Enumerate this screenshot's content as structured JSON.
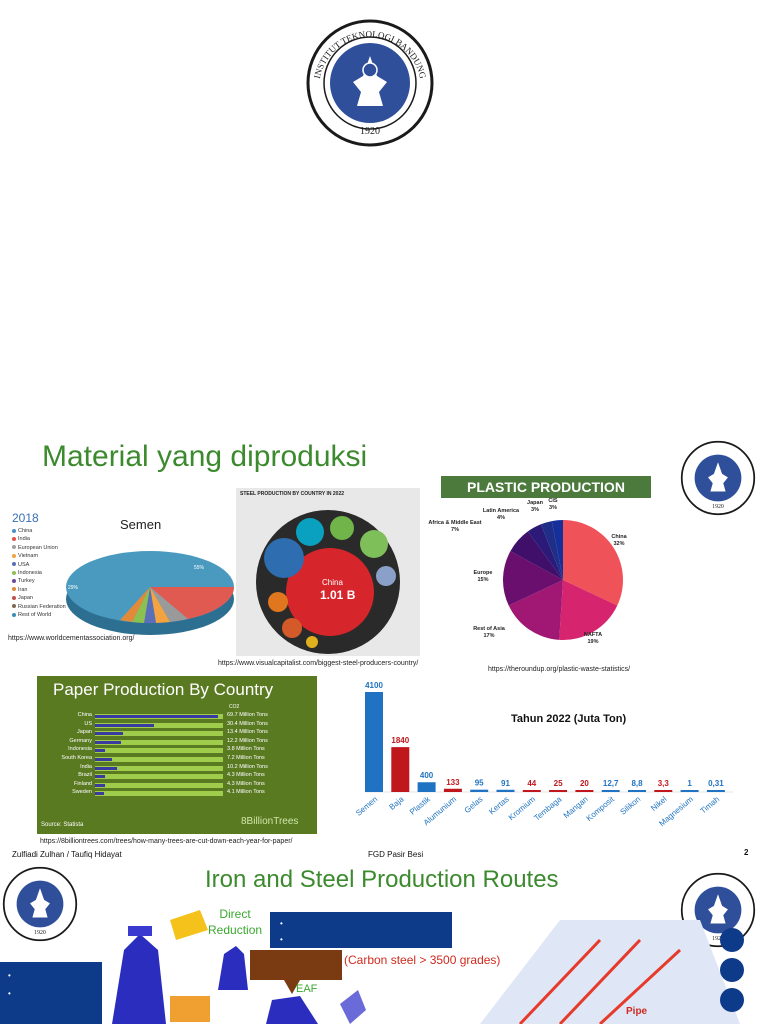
{
  "slide2": {
    "title": "Material yang diproduksi",
    "footer_left": "Zulfiadi Zulhan / Taufiq Hidayat",
    "footer_center": "FGD Pasir Besi",
    "page_number": "2",
    "cement": {
      "year": "2018",
      "title": "Semen",
      "legend": [
        "China",
        "India",
        "European Union",
        "Vietnam",
        "USA",
        "Indonesia",
        "Turkey",
        "Iran",
        "Japan",
        "Russian Federation",
        "Rest of World"
      ],
      "colors": [
        "#4a90c8",
        "#e0524d",
        "#a0a0a0",
        "#f4a340",
        "#5a6fb8",
        "#8cc152",
        "#6a4a9c",
        "#e38a3a",
        "#c0504d",
        "#7f6a50",
        "#3a8fb5"
      ],
      "source": "https://www.worldcementassociation.org/"
    },
    "steel": {
      "header": "STEEL PRODUCTION BY COUNTRY IN 2022",
      "center_country": "China",
      "center_value": "1.01 B",
      "source": "https://www.visualcapitalist.com/biggest-steel-producers-country/"
    },
    "plastic": {
      "header": "PLASTIC PRODUCTION",
      "source": "https://theroundup.org/plastic-waste-statistics/"
    },
    "paper": {
      "header": "Paper Production By Country",
      "countries": [
        "China",
        "US",
        "Japan",
        "Germany",
        "Indonesia",
        "South Korea",
        "India",
        "Brazil",
        "Finland",
        "Sweden"
      ],
      "values_text": [
        "69.7 Million Tons",
        "30.4 Million Tons",
        "13.4 Million Tons",
        "12.2 Million Tons",
        "3.8 Million Tons",
        "7.2 Million Tons",
        "10.2 Million Tons",
        "4.3 Million Tons",
        "4.3 Million Tons",
        "4.1 Million Tons"
      ],
      "column_label": "CO2",
      "source_label": "Source: Statista",
      "brand": "8BillionTrees",
      "url": "https://8billiontrees.com/trees/how-many-trees-are-cut-down-each-year-for-paper/"
    }
  },
  "slide3": {
    "title": "Iron and Steel Production Routes",
    "direct_reduction": "Direct\nReduction",
    "carbon_note": "(Carbon steel > 3500 grades)",
    "eaf_label": "EAF",
    "pipe_label": "Pipe"
  },
  "chart_data": [
    {
      "type": "pie",
      "title": "PLASTIC PRODUCTION",
      "categories": [
        "China",
        "NAFTA",
        "Rest of Asia",
        "Europe",
        "Africa & Middle East",
        "Latin America",
        "Japan",
        "CIS"
      ],
      "values": [
        32,
        19,
        17,
        15,
        7,
        4,
        3,
        3
      ],
      "labels": [
        "China\n32%",
        "NAFTA\n19%",
        "Rest of Asia\n17%",
        "Europe\n15%",
        "Africa & Middle East\n7%",
        "Latin America\n4%",
        "Japan\n3%",
        "CIS\n3%"
      ],
      "colors": [
        "#f0525a",
        "#d6256e",
        "#a01874",
        "#6a0f6e",
        "#3f0f6a",
        "#2b1a78",
        "#1f2f88",
        "#15309a"
      ]
    },
    {
      "type": "bar",
      "title": "Tahun 2022 (Juta Ton)",
      "categories": [
        "Semen",
        "Baja",
        "Plastik",
        "Alumunium",
        "Gelas",
        "Kertas",
        "Kromium",
        "Tembaga",
        "Mangan",
        "Komposit",
        "Silikon",
        "Nikel",
        "Magnesium",
        "Timah"
      ],
      "value_labels": [
        "4100",
        "1840",
        "400",
        "133",
        "95",
        "91",
        "44",
        "25",
        "20",
        "12,7",
        "8,8",
        "3,3",
        "1",
        "0,31"
      ],
      "values": [
        4100,
        1840,
        400,
        133,
        95,
        91,
        44,
        25,
        20,
        12.7,
        8.8,
        3.3,
        1,
        0.31
      ],
      "colors": [
        "#1f73c2",
        "#c0171d",
        "#1f73c2",
        "#c0171d",
        "#1f73c2",
        "#1f73c2",
        "#c0171d",
        "#c0171d",
        "#c0171d",
        "#1f73c2",
        "#1f73c2",
        "#c0171d",
        "#1f73c2",
        "#1f73c2"
      ],
      "ylim": [
        0,
        4100
      ]
    }
  ]
}
